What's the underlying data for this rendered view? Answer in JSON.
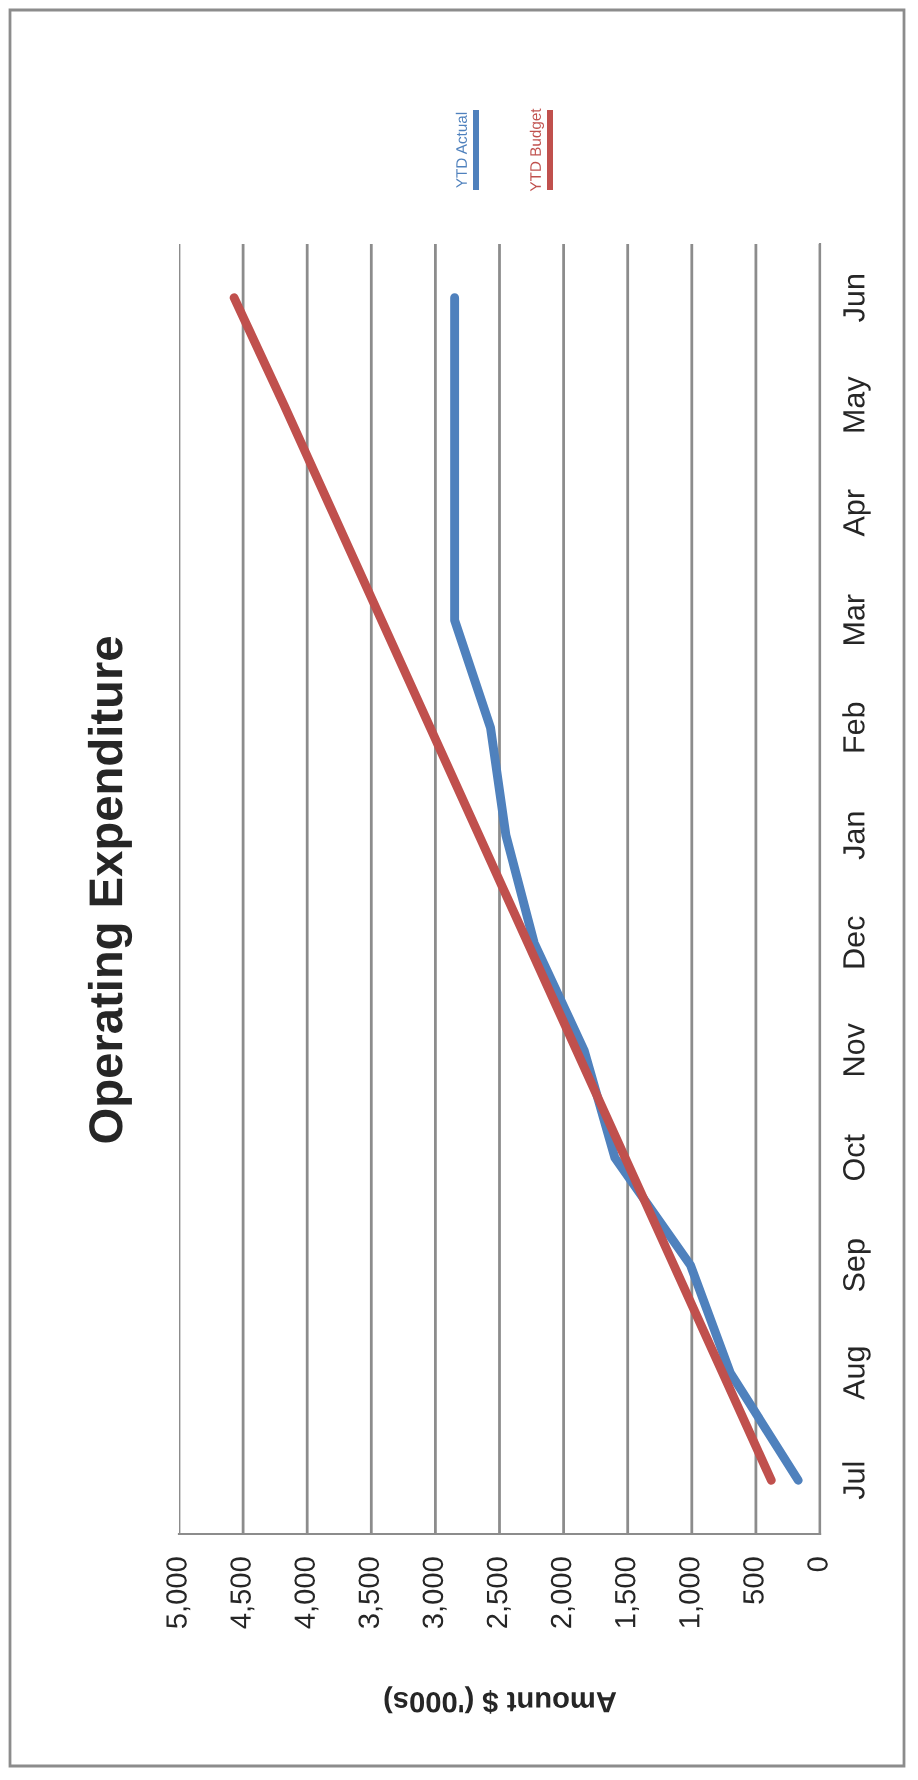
{
  "chart_data": {
    "type": "line",
    "orientation": "horizontal",
    "title": "Operating Expenditure",
    "xlabel": "Amount $ ('000s)",
    "categories": [
      "Jun",
      "May",
      "Apr",
      "Mar",
      "Feb",
      "Jan",
      "Dec",
      "Nov",
      "Oct",
      "Sep",
      "Aug",
      "Jul"
    ],
    "series": [
      {
        "name": "YTD Actual",
        "color": "#4f81bd",
        "values": [
          2850,
          2850,
          2850,
          2850,
          2570,
          2450,
          2230,
          1840,
          1600,
          1010,
          700,
          170
        ]
      },
      {
        "name": "YTD Budget",
        "color": "#c0504d",
        "values": [
          4570,
          4180,
          3800,
          3420,
          3040,
          2660,
          2280,
          1900,
          1520,
          1140,
          760,
          380
        ]
      }
    ],
    "xlim": [
      5000,
      0
    ],
    "xticks": [
      {
        "value": 5000,
        "label": "5,000"
      },
      {
        "value": 4500,
        "label": "4,500"
      },
      {
        "value": 4000,
        "label": "4,000"
      },
      {
        "value": 3500,
        "label": "3,500"
      },
      {
        "value": 3000,
        "label": "3,000"
      },
      {
        "value": 2500,
        "label": "2,500"
      },
      {
        "value": 2000,
        "label": "2,000"
      },
      {
        "value": 1500,
        "label": "1,500"
      },
      {
        "value": 1000,
        "label": "1,000"
      },
      500,
      0
    ],
    "grid": "x",
    "legend": "top right"
  }
}
